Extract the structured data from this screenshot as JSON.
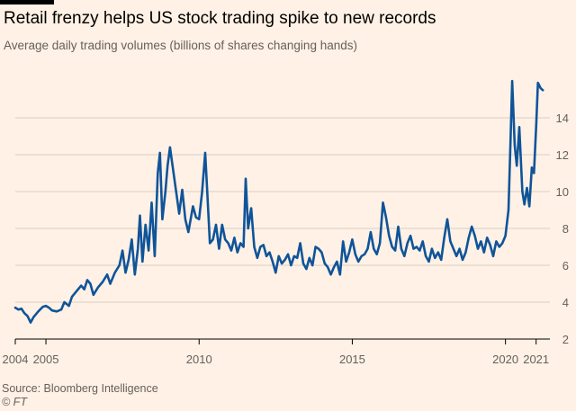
{
  "header": {
    "title": "Retail frenzy helps US stock trading spike to new records",
    "subtitle": "Average daily trading volumes (billions of shares changing hands)"
  },
  "footer": {
    "source": "Source: Bloomberg Intelligence",
    "credit": "© FT"
  },
  "colors": {
    "background": "#fff1e5",
    "line": "#0f5499",
    "grid": "#d9cdc3",
    "text": "#66605c"
  },
  "chart_data": {
    "type": "line",
    "title": "Retail frenzy helps US stock trading spike to new records",
    "subtitle": "Average daily trading volumes (billions of shares changing hands)",
    "xlabel": "",
    "ylabel": "",
    "xlim": [
      2004.0,
      2021.45
    ],
    "ylim": [
      2,
      16
    ],
    "yticks": [
      2,
      4,
      6,
      8,
      10,
      12,
      14
    ],
    "ytick_labels": [
      "2",
      "4",
      "6",
      "8",
      "10",
      "12",
      "14"
    ],
    "ytick_side": "right",
    "xticks": [
      2004,
      2005,
      2010,
      2015,
      2020,
      2021
    ],
    "xtick_labels": [
      "2004",
      "2005",
      "2010",
      "2015",
      "2020",
      "2021"
    ],
    "grid": "horizontal",
    "legend": "none",
    "series": [
      {
        "name": "",
        "points": [
          [
            2004.0,
            3.7
          ],
          [
            2004.1,
            3.6
          ],
          [
            2004.2,
            3.65
          ],
          [
            2004.3,
            3.4
          ],
          [
            2004.4,
            3.25
          ],
          [
            2004.5,
            2.9
          ],
          [
            2004.6,
            3.2
          ],
          [
            2004.75,
            3.5
          ],
          [
            2004.9,
            3.75
          ],
          [
            2005.0,
            3.8
          ],
          [
            2005.1,
            3.7
          ],
          [
            2005.2,
            3.55
          ],
          [
            2005.35,
            3.5
          ],
          [
            2005.5,
            3.6
          ],
          [
            2005.6,
            4.0
          ],
          [
            2005.75,
            3.8
          ],
          [
            2005.85,
            4.3
          ],
          [
            2006.0,
            4.6
          ],
          [
            2006.15,
            4.9
          ],
          [
            2006.25,
            4.7
          ],
          [
            2006.35,
            5.2
          ],
          [
            2006.45,
            5.0
          ],
          [
            2006.55,
            4.4
          ],
          [
            2006.7,
            4.8
          ],
          [
            2006.85,
            5.1
          ],
          [
            2007.0,
            5.5
          ],
          [
            2007.1,
            5.0
          ],
          [
            2007.25,
            5.6
          ],
          [
            2007.4,
            6.0
          ],
          [
            2007.5,
            6.8
          ],
          [
            2007.6,
            5.6
          ],
          [
            2007.7,
            6.3
          ],
          [
            2007.8,
            7.4
          ],
          [
            2007.9,
            5.5
          ],
          [
            2008.0,
            6.9
          ],
          [
            2008.07,
            8.7
          ],
          [
            2008.15,
            6.2
          ],
          [
            2008.25,
            8.2
          ],
          [
            2008.35,
            6.8
          ],
          [
            2008.45,
            9.4
          ],
          [
            2008.55,
            6.5
          ],
          [
            2008.65,
            11.0
          ],
          [
            2008.72,
            12.1
          ],
          [
            2008.8,
            8.5
          ],
          [
            2008.9,
            10.0
          ],
          [
            2008.97,
            11.4
          ],
          [
            2009.05,
            12.4
          ],
          [
            2009.15,
            11.2
          ],
          [
            2009.25,
            10.0
          ],
          [
            2009.35,
            8.8
          ],
          [
            2009.45,
            10.1
          ],
          [
            2009.55,
            8.5
          ],
          [
            2009.65,
            7.8
          ],
          [
            2009.8,
            9.2
          ],
          [
            2009.9,
            8.6
          ],
          [
            2010.0,
            8.5
          ],
          [
            2010.1,
            10.0
          ],
          [
            2010.2,
            12.1
          ],
          [
            2010.28,
            9.5
          ],
          [
            2010.35,
            7.2
          ],
          [
            2010.45,
            7.4
          ],
          [
            2010.55,
            8.2
          ],
          [
            2010.65,
            6.9
          ],
          [
            2010.75,
            8.2
          ],
          [
            2010.85,
            7.4
          ],
          [
            2010.95,
            7.2
          ],
          [
            2011.05,
            6.8
          ],
          [
            2011.15,
            7.5
          ],
          [
            2011.25,
            6.7
          ],
          [
            2011.35,
            7.2
          ],
          [
            2011.45,
            7.0
          ],
          [
            2011.52,
            10.7
          ],
          [
            2011.6,
            8.0
          ],
          [
            2011.7,
            9.1
          ],
          [
            2011.8,
            7.0
          ],
          [
            2011.9,
            6.4
          ],
          [
            2012.0,
            7.0
          ],
          [
            2012.1,
            7.1
          ],
          [
            2012.2,
            6.5
          ],
          [
            2012.3,
            6.7
          ],
          [
            2012.4,
            6.2
          ],
          [
            2012.5,
            5.6
          ],
          [
            2012.6,
            6.5
          ],
          [
            2012.7,
            6.1
          ],
          [
            2012.8,
            6.3
          ],
          [
            2012.9,
            6.6
          ],
          [
            2013.0,
            6.0
          ],
          [
            2013.1,
            6.5
          ],
          [
            2013.2,
            6.4
          ],
          [
            2013.3,
            7.2
          ],
          [
            2013.4,
            6.1
          ],
          [
            2013.5,
            5.8
          ],
          [
            2013.6,
            6.4
          ],
          [
            2013.7,
            6.0
          ],
          [
            2013.8,
            7.0
          ],
          [
            2013.9,
            6.9
          ],
          [
            2014.0,
            6.7
          ],
          [
            2014.1,
            6.1
          ],
          [
            2014.2,
            5.9
          ],
          [
            2014.3,
            5.5
          ],
          [
            2014.4,
            5.9
          ],
          [
            2014.5,
            6.2
          ],
          [
            2014.6,
            5.5
          ],
          [
            2014.7,
            7.3
          ],
          [
            2014.8,
            6.2
          ],
          [
            2014.9,
            6.7
          ],
          [
            2015.0,
            7.4
          ],
          [
            2015.1,
            6.6
          ],
          [
            2015.2,
            6.2
          ],
          [
            2015.3,
            6.5
          ],
          [
            2015.4,
            6.6
          ],
          [
            2015.5,
            6.9
          ],
          [
            2015.6,
            7.8
          ],
          [
            2015.7,
            6.9
          ],
          [
            2015.8,
            6.6
          ],
          [
            2015.9,
            7.2
          ],
          [
            2016.0,
            9.4
          ],
          [
            2016.1,
            8.6
          ],
          [
            2016.2,
            7.6
          ],
          [
            2016.3,
            7.0
          ],
          [
            2016.4,
            6.8
          ],
          [
            2016.5,
            8.1
          ],
          [
            2016.6,
            6.9
          ],
          [
            2016.7,
            6.5
          ],
          [
            2016.8,
            7.2
          ],
          [
            2016.9,
            7.6
          ],
          [
            2017.0,
            6.9
          ],
          [
            2017.1,
            7.0
          ],
          [
            2017.2,
            6.8
          ],
          [
            2017.3,
            7.3
          ],
          [
            2017.4,
            6.5
          ],
          [
            2017.5,
            6.2
          ],
          [
            2017.6,
            6.9
          ],
          [
            2017.7,
            6.4
          ],
          [
            2017.8,
            6.7
          ],
          [
            2017.9,
            6.3
          ],
          [
            2018.0,
            7.5
          ],
          [
            2018.1,
            8.5
          ],
          [
            2018.2,
            7.3
          ],
          [
            2018.3,
            6.9
          ],
          [
            2018.4,
            6.5
          ],
          [
            2018.5,
            6.9
          ],
          [
            2018.6,
            6.3
          ],
          [
            2018.7,
            6.7
          ],
          [
            2018.8,
            7.5
          ],
          [
            2018.9,
            8.1
          ],
          [
            2019.0,
            7.6
          ],
          [
            2019.1,
            6.9
          ],
          [
            2019.2,
            7.3
          ],
          [
            2019.3,
            6.7
          ],
          [
            2019.4,
            7.5
          ],
          [
            2019.5,
            7.1
          ],
          [
            2019.6,
            6.5
          ],
          [
            2019.7,
            7.3
          ],
          [
            2019.8,
            7.0
          ],
          [
            2019.9,
            7.2
          ],
          [
            2020.0,
            7.6
          ],
          [
            2020.1,
            9.0
          ],
          [
            2020.17,
            13.0
          ],
          [
            2020.22,
            16.0
          ],
          [
            2020.3,
            12.5
          ],
          [
            2020.37,
            11.4
          ],
          [
            2020.45,
            13.5
          ],
          [
            2020.55,
            10.0
          ],
          [
            2020.62,
            9.3
          ],
          [
            2020.7,
            10.2
          ],
          [
            2020.78,
            9.2
          ],
          [
            2020.86,
            11.3
          ],
          [
            2020.93,
            11.0
          ],
          [
            2021.0,
            13.5
          ],
          [
            2021.06,
            15.9
          ],
          [
            2021.15,
            15.6
          ],
          [
            2021.22,
            15.5
          ]
        ]
      }
    ]
  }
}
